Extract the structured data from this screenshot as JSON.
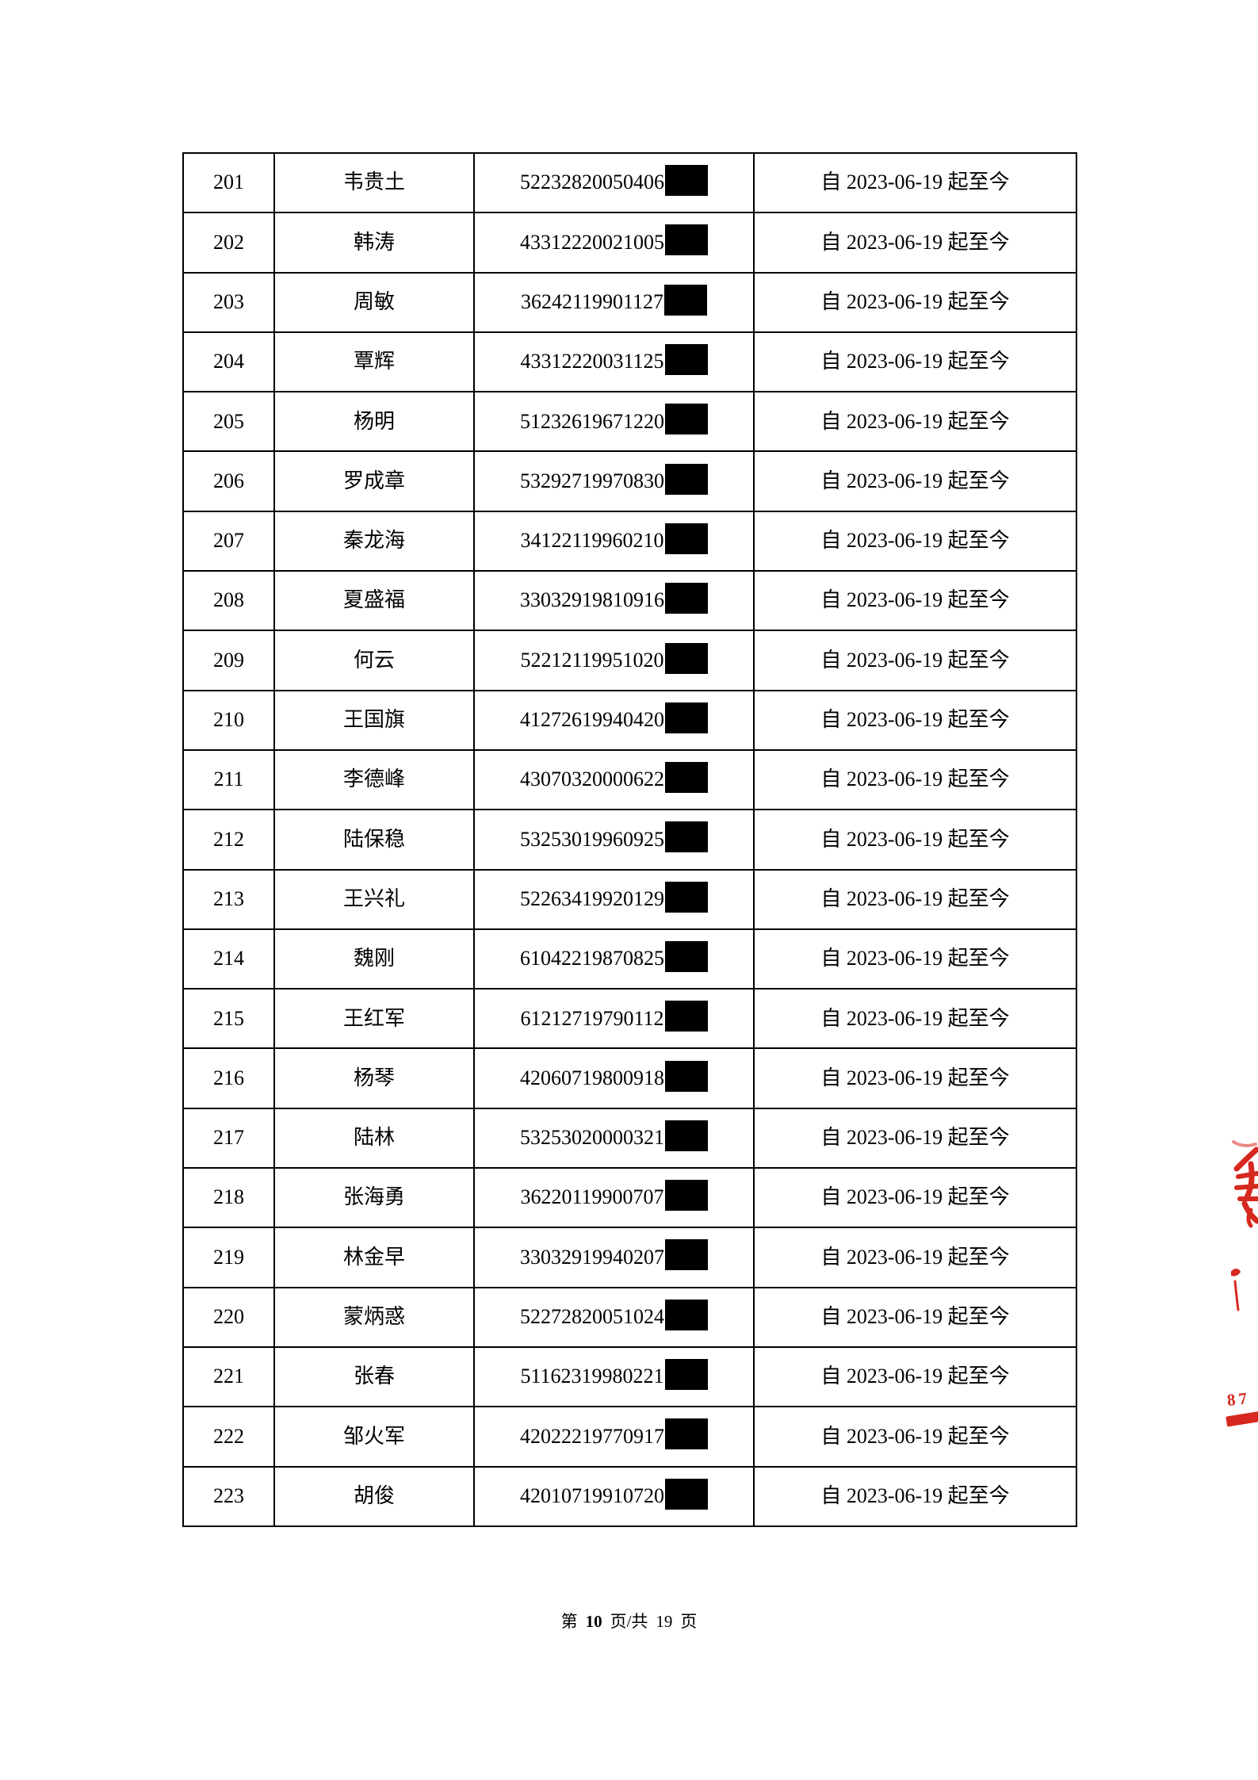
{
  "table": {
    "rows": [
      {
        "no": "201",
        "name": "韦贵土",
        "id_visible": "52232820050406",
        "period": "自 2023-06-19 起至今"
      },
      {
        "no": "202",
        "name": "韩涛",
        "id_visible": "43312220021005",
        "period": "自 2023-06-19 起至今"
      },
      {
        "no": "203",
        "name": "周敏",
        "id_visible": "36242119901127",
        "period": "自 2023-06-19 起至今"
      },
      {
        "no": "204",
        "name": "覃辉",
        "id_visible": "43312220031125",
        "period": "自 2023-06-19 起至今"
      },
      {
        "no": "205",
        "name": "杨明",
        "id_visible": "51232619671220",
        "period": "自 2023-06-19 起至今"
      },
      {
        "no": "206",
        "name": "罗成章",
        "id_visible": "53292719970830",
        "period": "自 2023-06-19 起至今"
      },
      {
        "no": "207",
        "name": "秦龙海",
        "id_visible": "34122119960210",
        "period": "自 2023-06-19 起至今"
      },
      {
        "no": "208",
        "name": "夏盛福",
        "id_visible": "33032919810916",
        "period": "自 2023-06-19 起至今"
      },
      {
        "no": "209",
        "name": "何云",
        "id_visible": "52212119951020",
        "period": "自 2023-06-19 起至今"
      },
      {
        "no": "210",
        "name": "王国旗",
        "id_visible": "41272619940420",
        "period": "自 2023-06-19 起至今"
      },
      {
        "no": "211",
        "name": "李德峰",
        "id_visible": "43070320000622",
        "period": "自 2023-06-19 起至今"
      },
      {
        "no": "212",
        "name": "陆保稳",
        "id_visible": "53253019960925",
        "period": "自 2023-06-19 起至今"
      },
      {
        "no": "213",
        "name": "王兴礼",
        "id_visible": "52263419920129",
        "period": "自 2023-06-19 起至今"
      },
      {
        "no": "214",
        "name": "魏刚",
        "id_visible": "61042219870825",
        "period": "自 2023-06-19 起至今"
      },
      {
        "no": "215",
        "name": "王红军",
        "id_visible": "61212719790112",
        "period": "自 2023-06-19 起至今"
      },
      {
        "no": "216",
        "name": "杨琴",
        "id_visible": "42060719800918",
        "period": "自 2023-06-19 起至今"
      },
      {
        "no": "217",
        "name": "陆林",
        "id_visible": "53253020000321",
        "period": "自 2023-06-19 起至今"
      },
      {
        "no": "218",
        "name": "张海勇",
        "id_visible": "36220119900707",
        "period": "自 2023-06-19 起至今"
      },
      {
        "no": "219",
        "name": "林金早",
        "id_visible": "33032919940207",
        "period": "自 2023-06-19 起至今"
      },
      {
        "no": "220",
        "name": "蒙炳惑",
        "id_visible": "52272820051024",
        "period": "自 2023-06-19 起至今"
      },
      {
        "no": "221",
        "name": "张春",
        "id_visible": "51162319980221",
        "period": "自 2023-06-19 起至今"
      },
      {
        "no": "222",
        "name": "邹火军",
        "id_visible": "42022219770917",
        "period": "自 2023-06-19 起至今"
      },
      {
        "no": "223",
        "name": "胡俊",
        "id_visible": "42010719910720",
        "period": "自 2023-06-19 起至今"
      }
    ]
  },
  "footer": {
    "text_before_page": "第",
    "page_number": "10",
    "text_between": "页/共",
    "total_pages": "19",
    "text_after": "页"
  },
  "seal": {
    "visible_text": "87",
    "color": "#d6281e"
  }
}
